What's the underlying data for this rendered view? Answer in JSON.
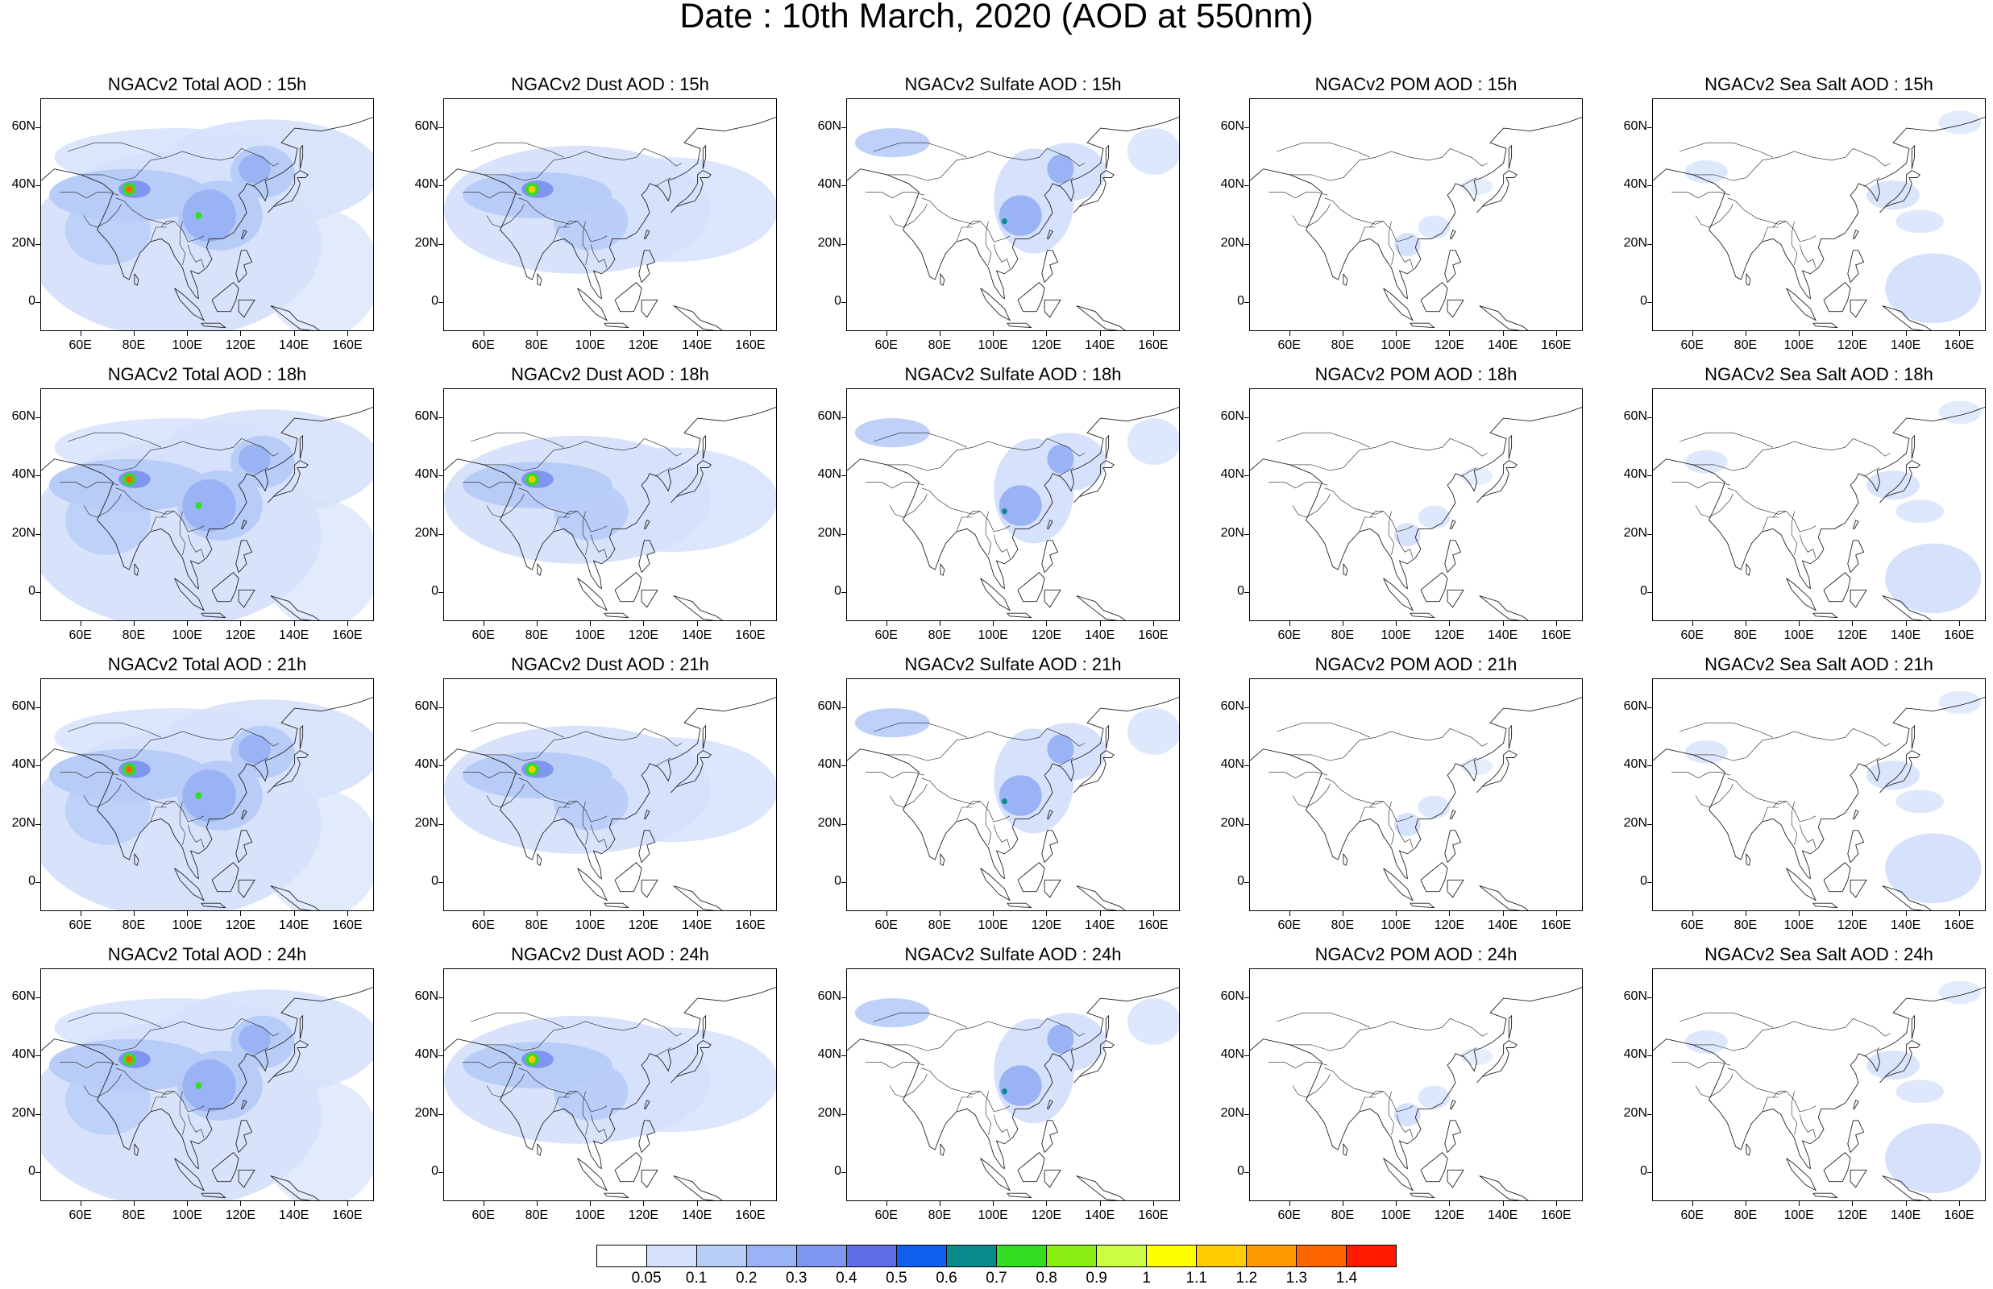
{
  "title": "Date : 10th March, 2020 (AOD at 550nm)",
  "axes": {
    "lon_labels": [
      "60E",
      "80E",
      "100E",
      "120E",
      "140E",
      "160E"
    ],
    "lon_values": [
      60,
      80,
      100,
      120,
      140,
      160
    ],
    "lat_labels": [
      "60N",
      "40N",
      "20N",
      "0"
    ],
    "lat_values": [
      60,
      40,
      20,
      0
    ],
    "lon_range": [
      45,
      170
    ],
    "lat_range": [
      -10,
      70
    ]
  },
  "panels": [
    {
      "title": "NGACv2 Total AOD : 15h",
      "species": "total",
      "hour": 15
    },
    {
      "title": "NGACv2 Dust AOD : 15h",
      "species": "dust",
      "hour": 15
    },
    {
      "title": "NGACv2 Sulfate AOD : 15h",
      "species": "sulfate",
      "hour": 15
    },
    {
      "title": "NGACv2 POM AOD : 15h",
      "species": "pom",
      "hour": 15
    },
    {
      "title": "NGACv2 Sea Salt AOD : 15h",
      "species": "seasalt",
      "hour": 15
    },
    {
      "title": "NGACv2 Total AOD : 18h",
      "species": "total",
      "hour": 18
    },
    {
      "title": "NGACv2 Dust AOD : 18h",
      "species": "dust",
      "hour": 18
    },
    {
      "title": "NGACv2 Sulfate AOD : 18h",
      "species": "sulfate",
      "hour": 18
    },
    {
      "title": "NGACv2 POM AOD : 18h",
      "species": "pom",
      "hour": 18
    },
    {
      "title": "NGACv2 Sea Salt AOD : 18h",
      "species": "seasalt",
      "hour": 18
    },
    {
      "title": "NGACv2 Total AOD : 21h",
      "species": "total",
      "hour": 21
    },
    {
      "title": "NGACv2 Dust AOD : 21h",
      "species": "dust",
      "hour": 21
    },
    {
      "title": "NGACv2 Sulfate AOD : 21h",
      "species": "sulfate",
      "hour": 21
    },
    {
      "title": "NGACv2 POM AOD : 21h",
      "species": "pom",
      "hour": 21
    },
    {
      "title": "NGACv2 Sea Salt AOD : 21h",
      "species": "seasalt",
      "hour": 21
    },
    {
      "title": "NGACv2 Total AOD : 24h",
      "species": "total",
      "hour": 24
    },
    {
      "title": "NGACv2 Dust AOD : 24h",
      "species": "dust",
      "hour": 24
    },
    {
      "title": "NGACv2 Sulfate AOD : 24h",
      "species": "sulfate",
      "hour": 24
    },
    {
      "title": "NGACv2 POM AOD : 24h",
      "species": "pom",
      "hour": 24
    },
    {
      "title": "NGACv2 Sea Salt  AOD : 24h",
      "species": "seasalt",
      "hour": 24
    }
  ],
  "colorbar": {
    "labels": [
      "0.05",
      "0.1",
      "0.2",
      "0.3",
      "0.4",
      "0.5",
      "0.6",
      "0.7",
      "0.8",
      "0.9",
      "1",
      "1.1",
      "1.2",
      "1.3",
      "1.4"
    ],
    "colors": [
      "#ffffff",
      "#d6e2fb",
      "#b8ccf8",
      "#9ab3f5",
      "#7e96ef",
      "#5f6ee6",
      "#1060f0",
      "#0a8a8a",
      "#33dd22",
      "#88ee11",
      "#ccff44",
      "#ffff00",
      "#ffcc00",
      "#ff9900",
      "#ff6600",
      "#ff1a00"
    ]
  }
}
